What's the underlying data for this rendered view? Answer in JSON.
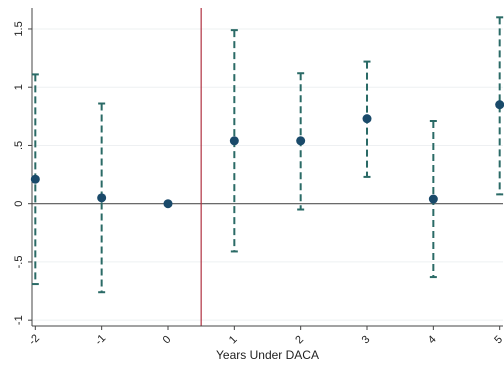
{
  "chart_data": {
    "type": "scatter",
    "subtype": "coefficient-plot-with-error-bars",
    "xlabel": "Years Under DACA",
    "ylabel": "",
    "x_ticks": [
      -2,
      -1,
      0,
      1,
      2,
      3,
      4,
      5
    ],
    "x_tick_labels": [
      "-2",
      "-1",
      "0",
      "1",
      "2",
      "3",
      "4",
      "5"
    ],
    "y_ticks": [
      -1,
      -0.5,
      0,
      0.5,
      1,
      1.5
    ],
    "y_tick_labels": [
      "-1",
      "-.5",
      "0",
      ".5",
      "1",
      "1.5"
    ],
    "xlim": [
      -2.05,
      5.05
    ],
    "ylim": [
      -1.05,
      1.68
    ],
    "reference_line_y": 0,
    "reference_line_x": 0.5,
    "grid": "horizontal",
    "legend": "none",
    "points": [
      {
        "x": -2,
        "estimate": 0.21,
        "ci_low": -0.69,
        "ci_high": 1.11
      },
      {
        "x": -1,
        "estimate": 0.05,
        "ci_low": -0.76,
        "ci_high": 0.86
      },
      {
        "x": 0,
        "estimate": 0.0,
        "ci_low": 0.0,
        "ci_high": 0.0
      },
      {
        "x": 1,
        "estimate": 0.54,
        "ci_low": -0.41,
        "ci_high": 1.49
      },
      {
        "x": 2,
        "estimate": 0.54,
        "ci_low": -0.05,
        "ci_high": 1.12
      },
      {
        "x": 3,
        "estimate": 0.73,
        "ci_low": 0.23,
        "ci_high": 1.22
      },
      {
        "x": 4,
        "estimate": 0.04,
        "ci_low": -0.63,
        "ci_high": 0.71
      },
      {
        "x": 5,
        "estimate": 0.85,
        "ci_low": 0.08,
        "ci_high": 1.6
      }
    ],
    "colors": {
      "marker": "#1a4a6a",
      "error_bar": "#2a6a66",
      "zero_line": "#555555",
      "vertical_line": "#b03040",
      "grid": "#eef0f2",
      "axis": "#444444"
    }
  }
}
